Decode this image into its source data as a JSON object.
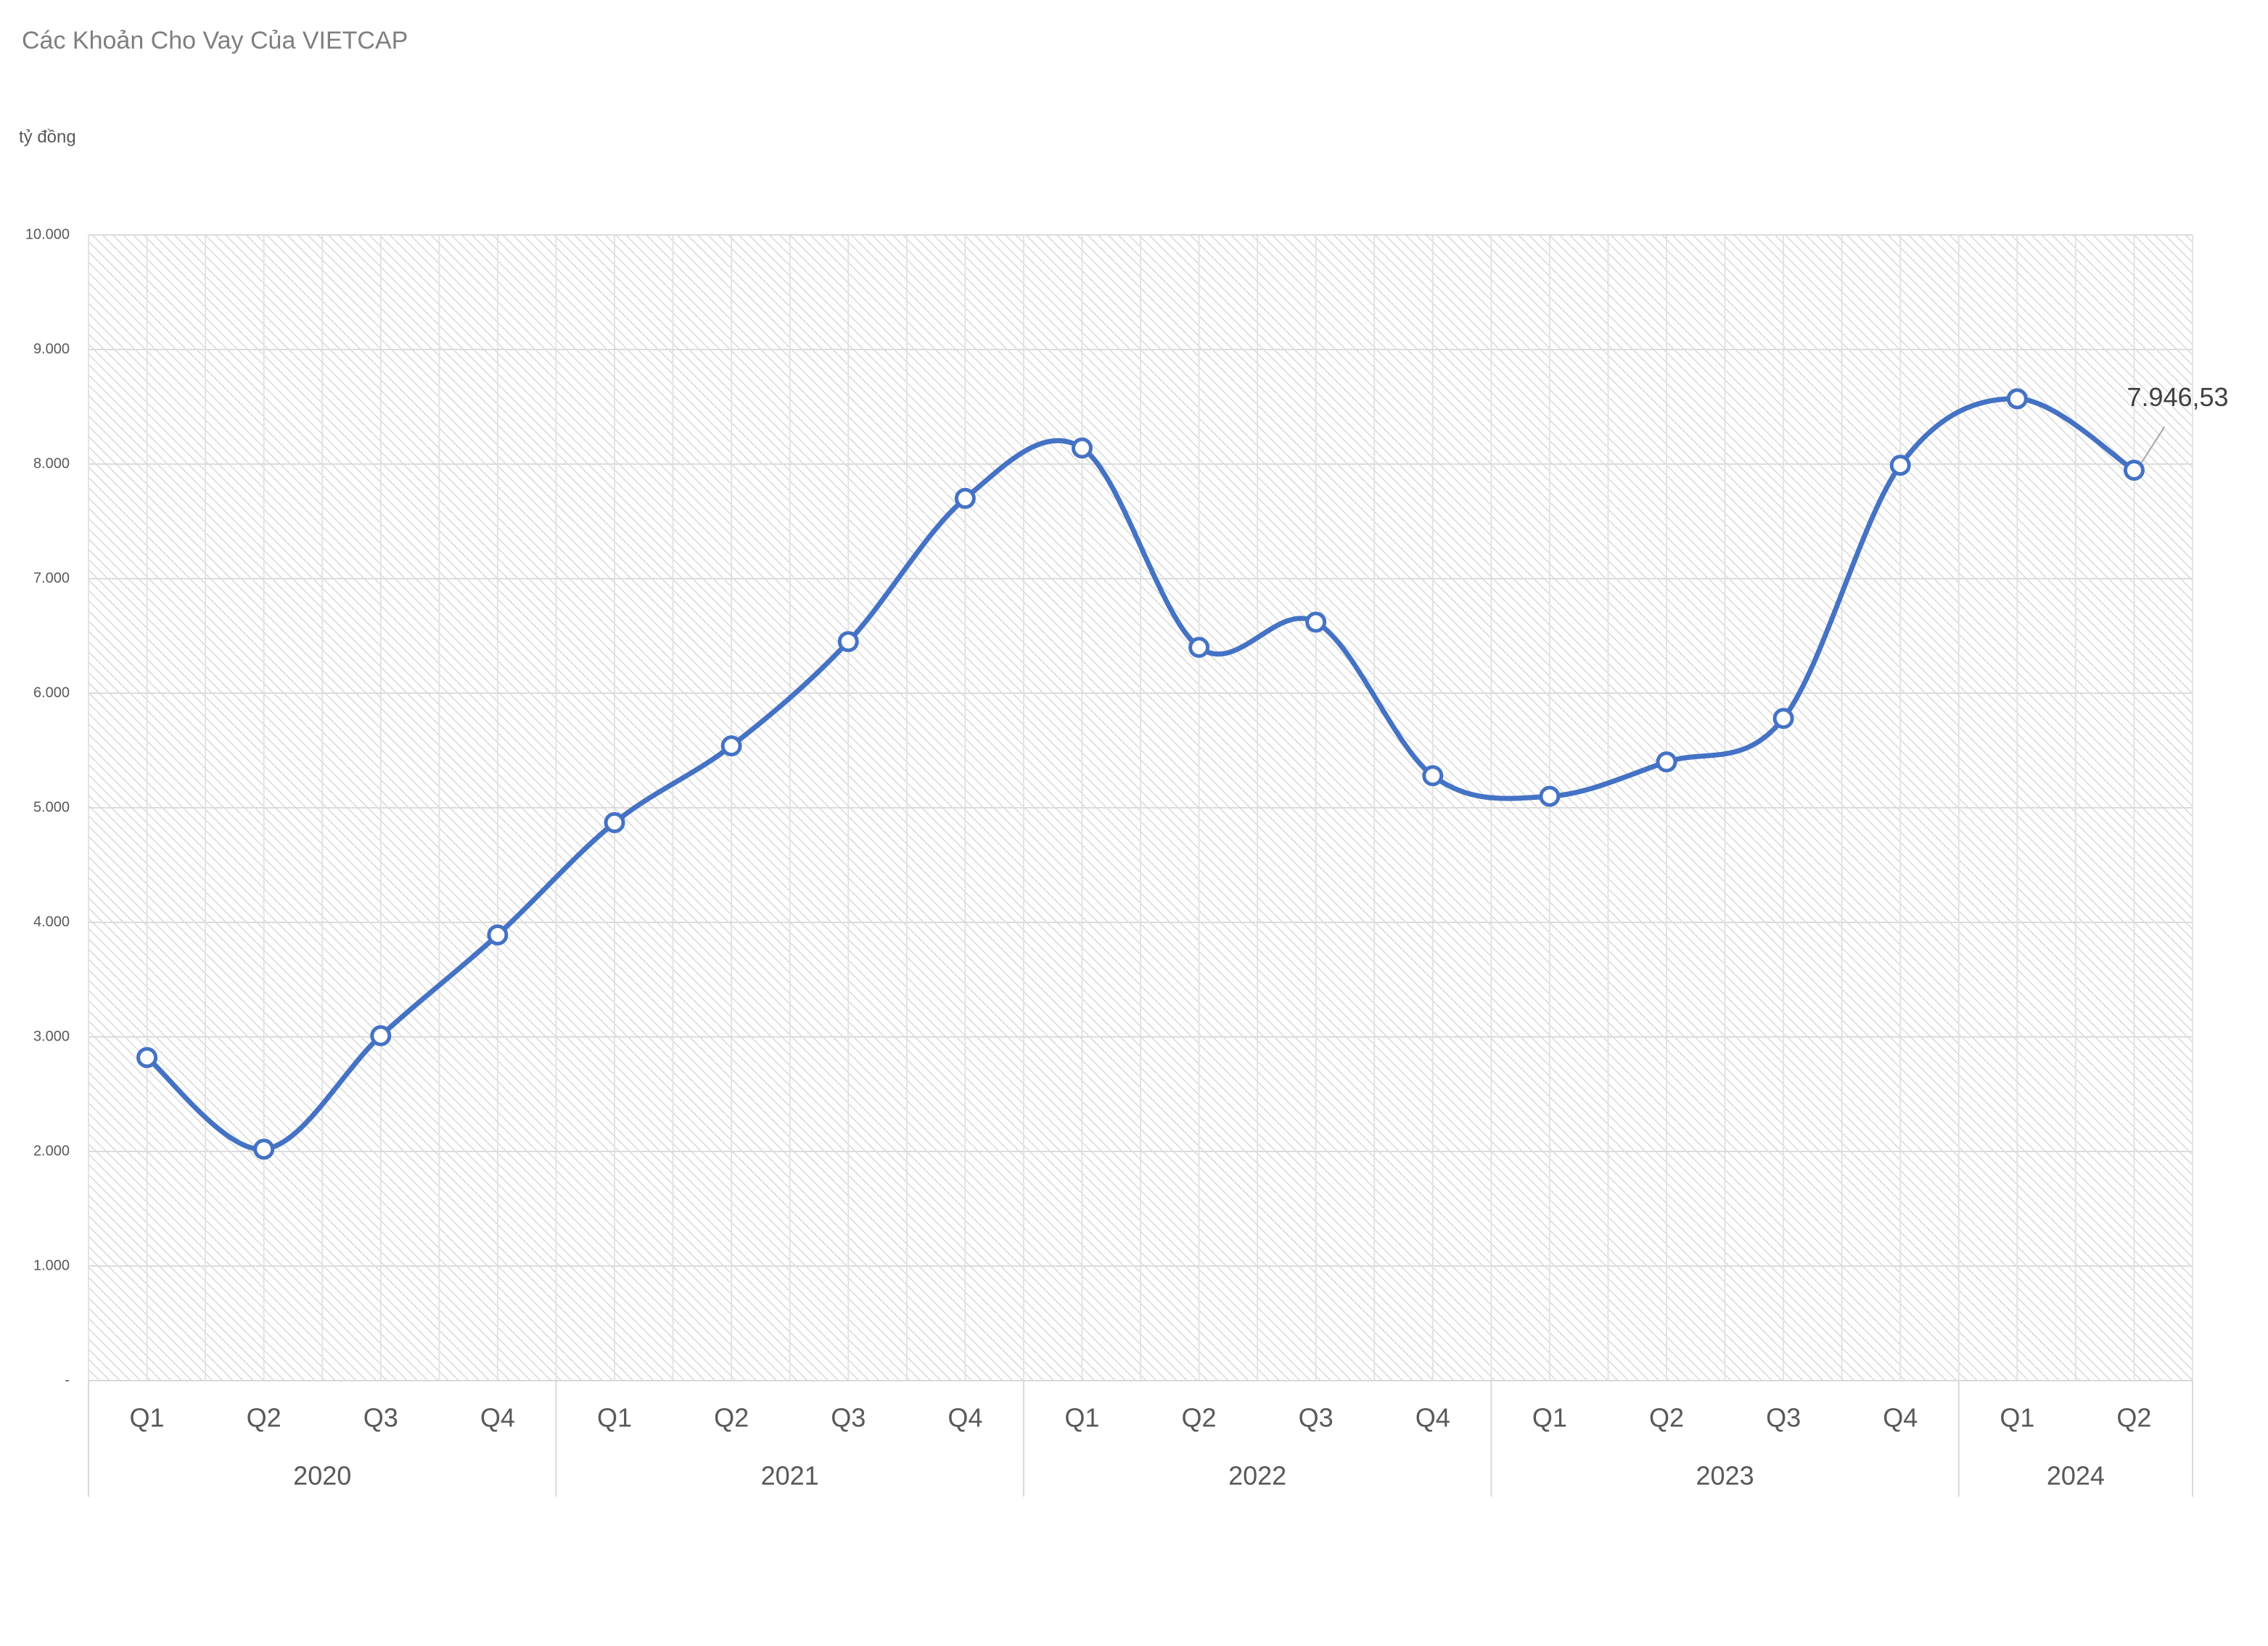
{
  "chart_data": {
    "type": "line",
    "title": "Các Khoản Cho Vay Của VIETCAP",
    "y_axis_label": "tỷ đồng",
    "groups": [
      {
        "label": "2020",
        "categories": [
          "Q1",
          "Q2",
          "Q3",
          "Q4"
        ]
      },
      {
        "label": "2021",
        "categories": [
          "Q1",
          "Q2",
          "Q3",
          "Q4"
        ]
      },
      {
        "label": "2022",
        "categories": [
          "Q1",
          "Q2",
          "Q3",
          "Q4"
        ]
      },
      {
        "label": "2023",
        "categories": [
          "Q1",
          "Q2",
          "Q3",
          "Q4"
        ]
      },
      {
        "label": "2024",
        "categories": [
          "Q1",
          "Q2"
        ]
      }
    ],
    "series": [
      {
        "color": "#4472c4",
        "values": [
          2820,
          2020,
          3010,
          3890,
          4870,
          5540,
          6450,
          7700,
          8140,
          6400,
          6620,
          5280,
          5100,
          5400,
          5780,
          7990,
          8570,
          7946.53
        ],
        "value_labels": [
          null,
          null,
          null,
          null,
          null,
          null,
          null,
          null,
          null,
          null,
          null,
          null,
          null,
          null,
          null,
          null,
          null,
          "7.946,53"
        ]
      }
    ],
    "ylim": [
      0,
      10000
    ],
    "yticks": [
      {
        "value": 0,
        "label": "-"
      },
      {
        "value": 1000,
        "label": "1.000"
      },
      {
        "value": 2000,
        "label": "2.000"
      },
      {
        "value": 3000,
        "label": "3.000"
      },
      {
        "value": 4000,
        "label": "4.000"
      },
      {
        "value": 5000,
        "label": "5.000"
      },
      {
        "value": 6000,
        "label": "6.000"
      },
      {
        "value": 7000,
        "label": "7.000"
      },
      {
        "value": 8000,
        "label": "8.000"
      },
      {
        "value": 9000,
        "label": "9.000"
      },
      {
        "value": 10000,
        "label": "10.000"
      }
    ],
    "grid": true,
    "smooth": true
  }
}
